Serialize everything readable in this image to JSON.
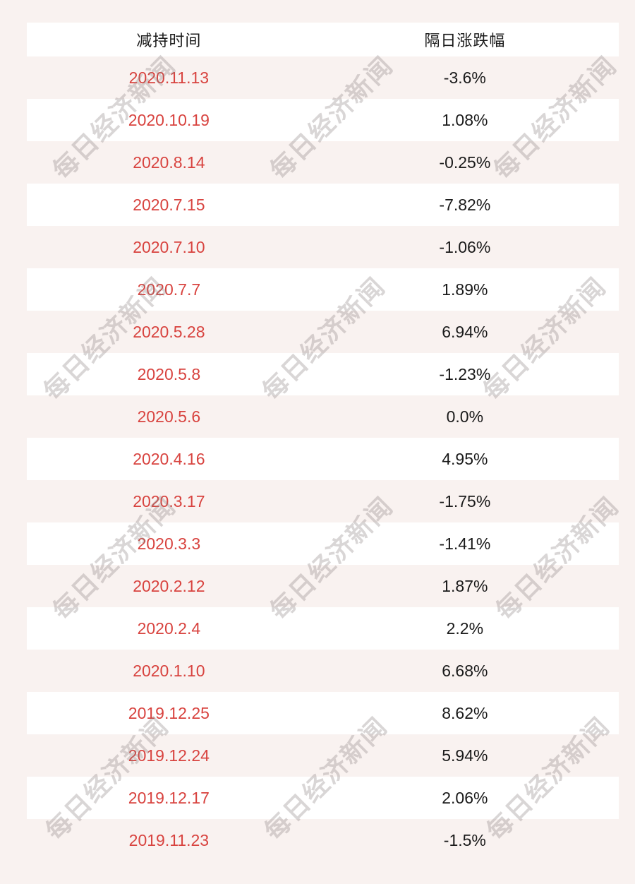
{
  "colors": {
    "page_bg": "#f9f2f0",
    "row_white": "#ffffff",
    "date_red": "#d8433f",
    "text_dark": "#1a1a1a"
  },
  "watermark": {
    "text": "每日经济新闻"
  },
  "chart_data": {
    "type": "table",
    "columns": [
      "减持时间",
      "隔日涨跌幅"
    ],
    "rows": [
      [
        "2020.11.13",
        "-3.6%"
      ],
      [
        "2020.10.19",
        "1.08%"
      ],
      [
        "2020.8.14",
        "-0.25%"
      ],
      [
        "2020.7.15",
        "-7.82%"
      ],
      [
        "2020.7.10",
        "-1.06%"
      ],
      [
        "2020.7.7",
        "1.89%"
      ],
      [
        "2020.5.28",
        "6.94%"
      ],
      [
        "2020.5.8",
        "-1.23%"
      ],
      [
        "2020.5.6",
        "0.0%"
      ],
      [
        "2020.4.16",
        "4.95%"
      ],
      [
        "2020.3.17",
        "-1.75%"
      ],
      [
        "2020.3.3",
        "-1.41%"
      ],
      [
        "2020.2.12",
        "1.87%"
      ],
      [
        "2020.2.4",
        "2.2%"
      ],
      [
        "2020.1.10",
        "6.68%"
      ],
      [
        "2019.12.25",
        "8.62%"
      ],
      [
        "2019.12.24",
        "5.94%"
      ],
      [
        "2019.12.17",
        "2.06%"
      ],
      [
        "2019.11.23",
        "-1.5%"
      ]
    ]
  }
}
